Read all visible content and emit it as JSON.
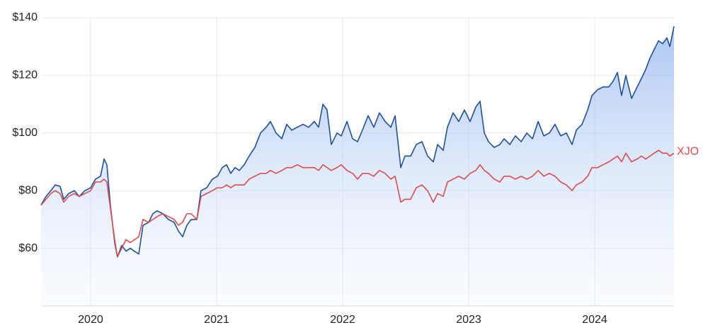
{
  "chart_data": {
    "type": "line",
    "x": [
      2019.607,
      2019.646,
      2019.685,
      2019.719,
      2019.758,
      2019.787,
      2019.826,
      2019.871,
      2019.91,
      2019.955,
      2020,
      2020.039,
      2020.079,
      2020.107,
      2020.129,
      2020.157,
      2020.191,
      2020.213,
      2020.247,
      2020.281,
      2020.315,
      2020.348,
      2020.382,
      2020.416,
      2020.461,
      2020.494,
      2020.528,
      2020.573,
      2020.618,
      2020.663,
      2020.697,
      2020.73,
      2020.764,
      2020.798,
      2020.843,
      2020.876,
      2020.921,
      2020.966,
      2021.006,
      2021.045,
      2021.079,
      2021.112,
      2021.146,
      2021.18,
      2021.219,
      2021.258,
      2021.303,
      2021.348,
      2021.393,
      2021.427,
      2021.472,
      2021.517,
      2021.556,
      2021.596,
      2021.64,
      2021.685,
      2021.73,
      2021.775,
      2021.809,
      2021.843,
      2021.876,
      2021.91,
      2021.955,
      2021.989,
      2022.034,
      2022.079,
      2022.118,
      2022.157,
      2022.202,
      2022.247,
      2022.292,
      2022.337,
      2022.382,
      2022.416,
      2022.461,
      2022.494,
      2022.539,
      2022.584,
      2022.629,
      2022.674,
      2022.719,
      2022.753,
      2022.798,
      2022.831,
      2022.876,
      2022.921,
      2022.966,
      2023.011,
      2023.056,
      2023.09,
      2023.124,
      2023.157,
      2023.202,
      2023.247,
      2023.281,
      2023.326,
      2023.371,
      2023.416,
      2023.461,
      2023.506,
      2023.551,
      2023.596,
      2023.64,
      2023.685,
      2023.73,
      2023.775,
      2023.82,
      2023.854,
      2023.899,
      2023.944,
      2023.978,
      2024.022,
      2024.067,
      2024.112,
      2024.146,
      2024.18,
      2024.213,
      2024.247,
      2024.292,
      2024.337,
      2024.371,
      2024.404,
      2024.438,
      2024.472,
      2024.506,
      2024.539,
      2024.573,
      2024.596,
      2024.629
    ],
    "series": [
      {
        "color": "#1f4fa0",
        "area": true,
        "values": [
          75,
          78,
          80,
          82,
          81.5,
          77,
          79,
          80,
          78,
          80,
          81,
          84,
          85,
          91,
          89,
          75,
          62,
          57,
          61,
          59,
          60,
          59,
          58,
          68,
          69,
          72,
          73,
          72,
          70,
          69,
          66,
          64,
          68,
          70,
          70,
          80,
          81,
          84,
          85,
          88,
          89,
          86,
          88,
          87,
          89,
          92,
          95,
          100,
          102,
          104,
          100,
          98,
          103,
          101,
          102,
          103,
          102,
          104,
          102,
          110,
          108,
          96,
          100,
          99,
          104,
          98,
          97,
          101,
          106,
          102,
          107,
          104,
          102,
          106,
          88,
          92,
          92,
          96,
          97,
          92,
          90,
          96,
          94,
          102,
          107,
          104,
          108,
          104,
          109,
          111,
          100,
          97,
          95,
          96,
          98,
          96,
          99,
          97,
          100,
          98,
          104,
          99,
          100,
          103,
          99,
          100,
          96,
          101,
          103,
          108,
          113,
          115,
          116,
          116,
          118,
          121,
          113,
          120,
          112,
          116,
          119,
          122,
          126,
          129,
          132,
          131,
          133,
          130,
          137
        ]
      },
      {
        "name": "XJO",
        "color": "#e04b4b",
        "values": [
          75,
          77,
          79,
          80,
          79,
          76,
          78,
          79,
          78,
          79,
          80,
          83,
          83,
          84,
          83,
          74,
          63,
          57,
          60,
          63,
          62,
          63,
          64,
          70,
          69,
          70,
          71,
          72,
          71,
          70,
          68,
          69,
          72,
          72,
          70,
          78,
          79,
          80,
          81,
          81,
          82,
          81,
          82,
          82,
          82,
          84,
          85,
          86,
          86,
          87,
          86,
          87,
          88,
          88,
          89,
          88,
          88,
          88,
          87,
          89,
          88,
          87,
          88,
          89,
          87,
          86,
          84,
          86,
          86,
          85,
          87,
          86,
          84,
          85,
          76,
          77,
          77,
          81,
          82,
          80,
          76,
          79,
          78,
          83,
          84,
          85,
          84,
          86,
          87,
          89,
          87,
          86,
          84,
          83,
          85,
          85,
          84,
          85,
          84,
          85,
          87,
          85,
          86,
          85,
          83,
          82,
          80,
          82,
          83,
          85,
          88,
          88,
          89,
          90,
          91,
          92,
          90,
          93,
          90,
          91,
          92,
          91,
          92,
          93,
          94,
          93,
          93,
          92,
          93
        ]
      }
    ],
    "xlim": [
      2019.607,
      2024.629
    ],
    "xticks": [
      2020,
      2021,
      2022,
      2023,
      2024
    ],
    "ylim": [
      40,
      140
    ],
    "yticks": [
      {
        "value": 60,
        "label": "$60"
      },
      {
        "value": 80,
        "label": "$80"
      },
      {
        "value": 100,
        "label": "$100"
      },
      {
        "value": 120,
        "label": "$120"
      },
      {
        "value": 140,
        "label": "$140"
      }
    ],
    "grid": true
  }
}
